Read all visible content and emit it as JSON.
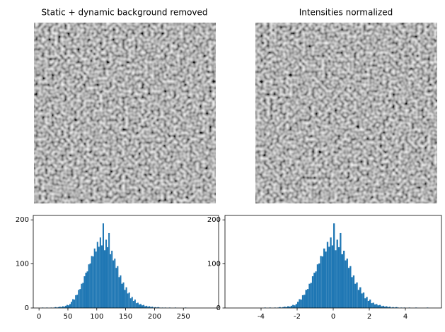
{
  "images": [
    {
      "title": "Static + dynamic background removed"
    },
    {
      "title": "Intensities normalized"
    }
  ],
  "chart_data": [
    {
      "type": "histogram",
      "color": "#1f77b4",
      "bins": [
        5,
        7.5,
        10,
        12.5,
        15,
        17.5,
        20,
        22.5,
        25,
        27.5,
        30,
        32.5,
        35,
        37.5,
        40,
        42.5,
        45,
        47.5,
        50,
        52.5,
        55,
        57.5,
        60,
        62.5,
        65,
        67.5,
        70,
        72.5,
        75,
        77.5,
        80,
        82.5,
        85,
        87.5,
        90,
        92.5,
        95,
        97.5,
        100,
        102.5,
        105,
        107.5,
        110,
        112.5,
        115,
        117.5,
        120,
        122.5,
        125,
        127.5,
        130,
        132.5,
        135,
        137.5,
        140,
        142.5,
        145,
        147.5,
        150,
        152.5,
        155,
        157.5,
        160,
        162.5,
        165,
        167.5,
        170,
        172.5,
        175,
        177.5,
        180,
        182.5,
        185,
        187.5,
        190,
        192.5,
        195,
        197.5,
        200,
        202.5,
        205,
        207.5,
        210,
        212.5,
        215,
        217.5,
        220,
        222.5,
        225,
        227.5,
        230,
        232.5,
        235,
        237.5,
        240,
        242.5,
        245,
        247.5,
        250,
        252.5,
        255
      ],
      "values": [
        1,
        0,
        0,
        1,
        0,
        0,
        1,
        0,
        1,
        2,
        1,
        2,
        3,
        2,
        4,
        3,
        5,
        7,
        6,
        9,
        14,
        20,
        19,
        29,
        30,
        41,
        43,
        55,
        57,
        72,
        80,
        83,
        99,
        101,
        118,
        117,
        135,
        128,
        150,
        139,
        160,
        142,
        192,
        131,
        155,
        138,
        170,
        122,
        130,
        108,
        112,
        91,
        95,
        70,
        74,
        55,
        58,
        41,
        47,
        33,
        35,
        22,
        25,
        16,
        19,
        11,
        12,
        8,
        9,
        6,
        7,
        4,
        5,
        3,
        4,
        2,
        3,
        1,
        2,
        1,
        2,
        1,
        0,
        1,
        0,
        1,
        0,
        0,
        1,
        0,
        0,
        0,
        1,
        0,
        0,
        0,
        0,
        0,
        0,
        1
      ],
      "xlim": [
        -10,
        311
      ],
      "ylim": [
        0,
        210
      ],
      "xticks": [
        0,
        50,
        100,
        150,
        200,
        250
      ],
      "yticks": [
        0,
        100,
        200
      ]
    },
    {
      "type": "histogram",
      "color": "#1f77b4",
      "bins": [
        -3.82,
        -3.73,
        -3.64,
        -3.55,
        -3.45,
        -3.36,
        -3.27,
        -3.18,
        -3.09,
        -3.0,
        -2.91,
        -2.82,
        -2.73,
        -2.64,
        -2.55,
        -2.45,
        -2.36,
        -2.27,
        -2.18,
        -2.09,
        -2.0,
        -1.91,
        -1.82,
        -1.73,
        -1.64,
        -1.55,
        -1.45,
        -1.36,
        -1.27,
        -1.18,
        -1.09,
        -1.0,
        -0.91,
        -0.82,
        -0.73,
        -0.64,
        -0.55,
        -0.45,
        -0.36,
        -0.27,
        -0.18,
        -0.09,
        0.0,
        0.09,
        0.18,
        0.27,
        0.36,
        0.45,
        0.55,
        0.64,
        0.73,
        0.82,
        0.91,
        1.0,
        1.09,
        1.18,
        1.27,
        1.36,
        1.45,
        1.55,
        1.64,
        1.73,
        1.82,
        1.91,
        2.0,
        2.09,
        2.18,
        2.27,
        2.36,
        2.45,
        2.55,
        2.64,
        2.73,
        2.82,
        2.91,
        3.0,
        3.09,
        3.18,
        3.27,
        3.36,
        3.45,
        3.55,
        3.64,
        3.73,
        3.82,
        3.91,
        4.0,
        4.09,
        4.18,
        4.27,
        4.36,
        4.45,
        4.55,
        4.64,
        4.73,
        4.82,
        4.91,
        5.0,
        5.09,
        5.18,
        5.27
      ],
      "values": [
        1,
        0,
        0,
        1,
        0,
        0,
        1,
        0,
        1,
        2,
        1,
        2,
        3,
        2,
        4,
        3,
        5,
        7,
        6,
        9,
        14,
        20,
        19,
        29,
        30,
        41,
        43,
        55,
        57,
        72,
        80,
        83,
        99,
        101,
        118,
        117,
        135,
        128,
        150,
        139,
        160,
        142,
        192,
        131,
        155,
        138,
        170,
        122,
        130,
        108,
        112,
        91,
        95,
        70,
        74,
        55,
        58,
        41,
        47,
        33,
        35,
        22,
        25,
        16,
        19,
        11,
        12,
        8,
        9,
        6,
        7,
        4,
        5,
        3,
        4,
        2,
        3,
        1,
        2,
        1,
        2,
        1,
        0,
        1,
        0,
        1,
        0,
        0,
        1,
        0,
        0,
        0,
        1,
        0,
        0,
        0,
        0,
        0,
        0,
        1
      ],
      "xlim": [
        -6,
        6
      ],
      "ylim": [
        0,
        210
      ],
      "xticks": [
        -4,
        -2,
        0,
        2,
        4
      ],
      "yticks": [
        0,
        100,
        200
      ]
    }
  ]
}
